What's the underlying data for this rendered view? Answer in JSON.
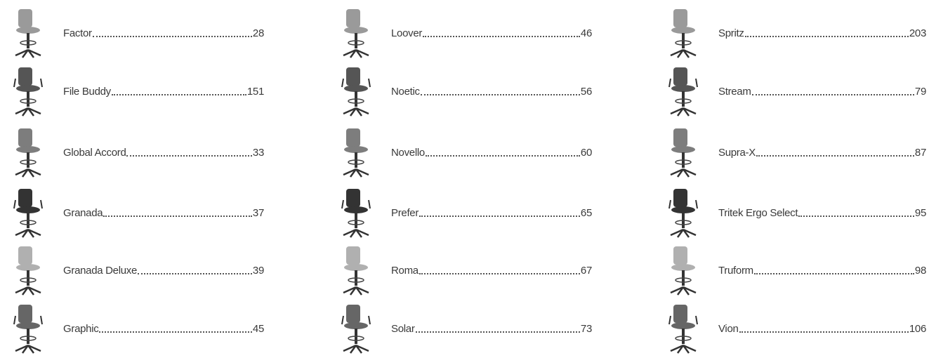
{
  "columns": [
    {
      "items": [
        {
          "name": "Factor",
          "page": "28"
        },
        {
          "name": "File Buddy",
          "page": "151"
        },
        {
          "name": "Global Accord",
          "page": "33"
        },
        {
          "name": "Granada",
          "page": "37"
        },
        {
          "name": "Granada Deluxe",
          "page": "39"
        },
        {
          "name": "Graphic",
          "page": "45"
        }
      ]
    },
    {
      "items": [
        {
          "name": "Loover",
          "page": "46"
        },
        {
          "name": "Noetic",
          "page": "56"
        },
        {
          "name": "Novello",
          "page": "60"
        },
        {
          "name": "Prefer",
          "page": "65"
        },
        {
          "name": "Roma",
          "page": "67"
        },
        {
          "name": "Solar",
          "page": "73"
        }
      ]
    },
    {
      "items": [
        {
          "name": "Spritz",
          "page": "203"
        },
        {
          "name": "Stream",
          "page": "79"
        },
        {
          "name": "Supra-X",
          "page": "87"
        },
        {
          "name": "Tritek Ergo Select",
          "page": "95"
        },
        {
          "name": "Truform",
          "page": "98"
        },
        {
          "name": "Vion",
          "page": "106"
        }
      ]
    }
  ]
}
